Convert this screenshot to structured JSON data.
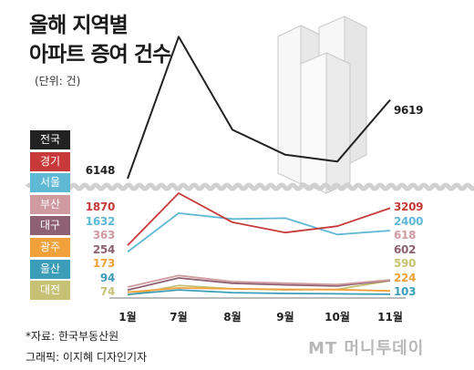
{
  "title_line1": "올해 지역별",
  "title_line2": "아파트 증여 건수",
  "unit": "(단위: 건)",
  "source": "*자료: 한국부동산원",
  "credit": "그래픽: 이지혜 디자인기자",
  "logo": "MT 머니투데이",
  "chart_data": {
    "type": "line",
    "x": [
      "1월",
      "7월",
      "8월",
      "9월",
      "10월",
      "11월"
    ],
    "series": [
      {
        "name": "전국",
        "color": "#222222",
        "values": [
          6148,
          12400,
          8300,
          7200,
          6900,
          9619
        ]
      },
      {
        "name": "경기",
        "color": "#c8393a",
        "values": [
          1870,
          3750,
          2700,
          2330,
          2560,
          3209
        ]
      },
      {
        "name": "서울",
        "color": "#5fb8d4",
        "values": [
          1632,
          3030,
          2820,
          2850,
          2260,
          2400
        ]
      },
      {
        "name": "부산",
        "color": "#cf9aa0",
        "values": [
          363,
          780,
          560,
          500,
          450,
          618
        ]
      },
      {
        "name": "대구",
        "color": "#8d6072",
        "values": [
          254,
          690,
          500,
          440,
          400,
          602
        ]
      },
      {
        "name": "광주",
        "color": "#f0a13a",
        "values": [
          173,
          330,
          300,
          280,
          270,
          224
        ]
      },
      {
        "name": "울산",
        "color": "#3c9db9",
        "values": [
          94,
          260,
          160,
          130,
          120,
          103
        ]
      },
      {
        "name": "대전",
        "color": "#c7c176",
        "values": [
          74,
          420,
          300,
          260,
          280,
          590
        ]
      }
    ],
    "labels_left": [
      {
        "text": "6148",
        "color": "#222222"
      },
      {
        "text": "1870",
        "color": "#c8393a"
      },
      {
        "text": "1632",
        "color": "#5fb8d4"
      },
      {
        "text": "363",
        "color": "#cf9aa0"
      },
      {
        "text": "254",
        "color": "#8d6072"
      },
      {
        "text": "173",
        "color": "#f0a13a"
      },
      {
        "text": "94",
        "color": "#3c9db9"
      },
      {
        "text": "74",
        "color": "#c7c176"
      }
    ],
    "labels_right": [
      {
        "text": "9619",
        "color": "#222222"
      },
      {
        "text": "3209",
        "color": "#c8393a"
      },
      {
        "text": "2400",
        "color": "#5fb8d4"
      },
      {
        "text": "618",
        "color": "#cf9aa0"
      },
      {
        "text": "602",
        "color": "#8d6072"
      },
      {
        "text": "590",
        "color": "#c7c176"
      },
      {
        "text": "224",
        "color": "#f0a13a"
      },
      {
        "text": "103",
        "color": "#3c9db9"
      }
    ],
    "axis_break": true,
    "grid": false,
    "legend_position": "left"
  }
}
